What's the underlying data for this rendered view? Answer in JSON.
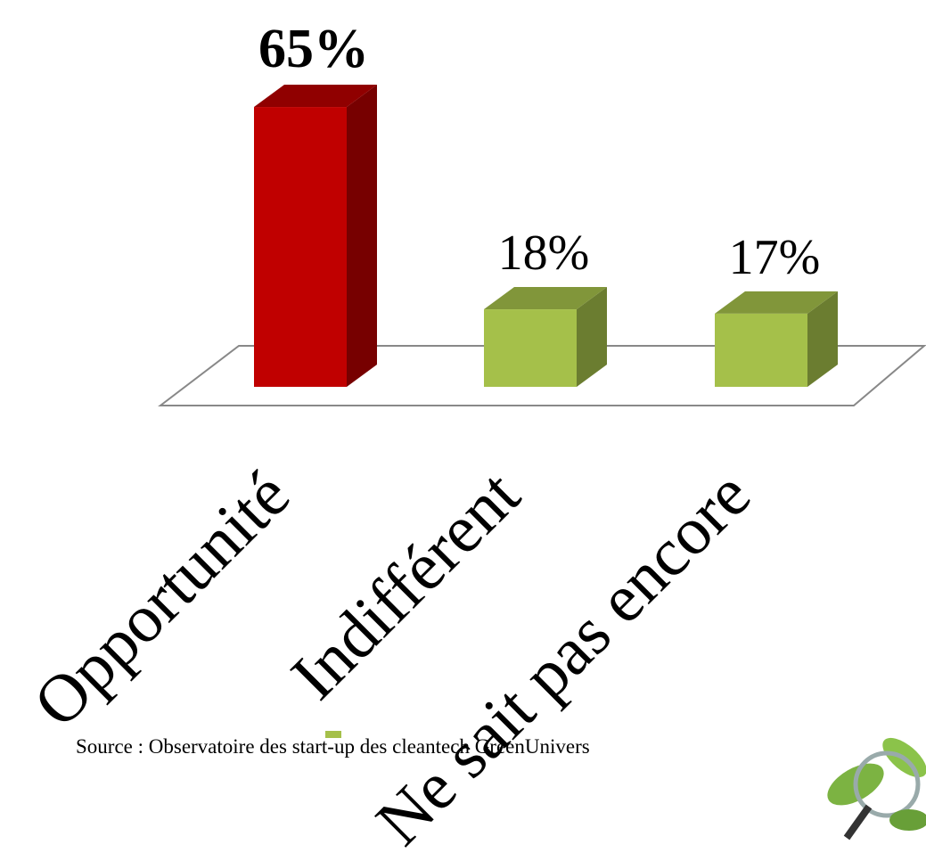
{
  "chart_data": {
    "type": "bar3d",
    "categories": [
      "Opportunité",
      "Indifférent",
      "Ne sait pas encore"
    ],
    "values": [
      65,
      18,
      17
    ],
    "value_labels": [
      "65%",
      "18%",
      "17%"
    ],
    "colors": [
      "#c00000",
      "#a5c04a",
      "#a5c04a"
    ],
    "source": "Source : Observatoire des start-up des cleantech GreenUnivers"
  }
}
